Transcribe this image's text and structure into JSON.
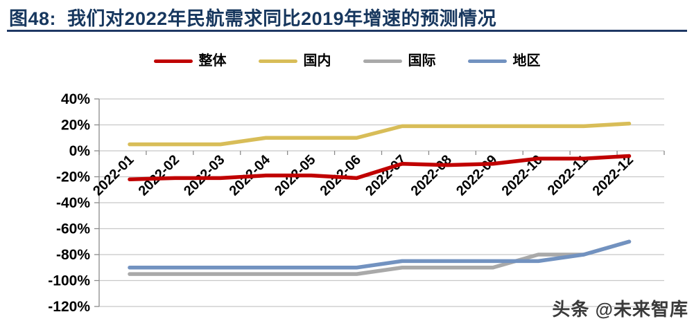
{
  "figure": {
    "title": "图48:  我们对2022年民航需求同比2019年增速的预测情况"
  },
  "watermark": "头条 @未来智库",
  "chart_data": {
    "type": "line",
    "title": "我们对2022年民航需求同比2019年增速的预测情况",
    "categories": [
      "2022-01",
      "2022-02",
      "2022-03",
      "2022-04",
      "2022-05",
      "2022-06",
      "2022-07",
      "2022-08",
      "2022-09",
      "2022-10",
      "2022-11",
      "2022-12"
    ],
    "series": [
      {
        "key": "overall",
        "name": "整体",
        "color": "#C00000",
        "values": [
          -22,
          -21,
          -21,
          -19,
          -19,
          -21,
          -10,
          -11,
          -10,
          -6,
          -6,
          -4
        ]
      },
      {
        "key": "domestic",
        "name": "国内",
        "color": "#D8BD58",
        "values": [
          5,
          5,
          5,
          10,
          10,
          10,
          19,
          19,
          19,
          19,
          19,
          21
        ]
      },
      {
        "key": "international",
        "name": "国际",
        "color": "#A9A9A9",
        "values": [
          -95,
          -95,
          -95,
          -95,
          -95,
          -95,
          -90,
          -90,
          -90,
          -80,
          -80,
          -70
        ]
      },
      {
        "key": "regional",
        "name": "地区",
        "color": "#7292C0",
        "values": [
          -90,
          -90,
          -90,
          -90,
          -90,
          -90,
          -85,
          -85,
          -85,
          -85,
          -80,
          -70
        ]
      }
    ],
    "ylim": [
      -120,
      40
    ],
    "ytick_step": 20,
    "ylabels": [
      "40%",
      "20%",
      "0%",
      "-20%",
      "-40%",
      "-60%",
      "-80%",
      "-100%",
      "-120%"
    ],
    "yaxis_format": "percent",
    "legend_position": "top",
    "grid": true,
    "x_labels_rotation": -45
  }
}
